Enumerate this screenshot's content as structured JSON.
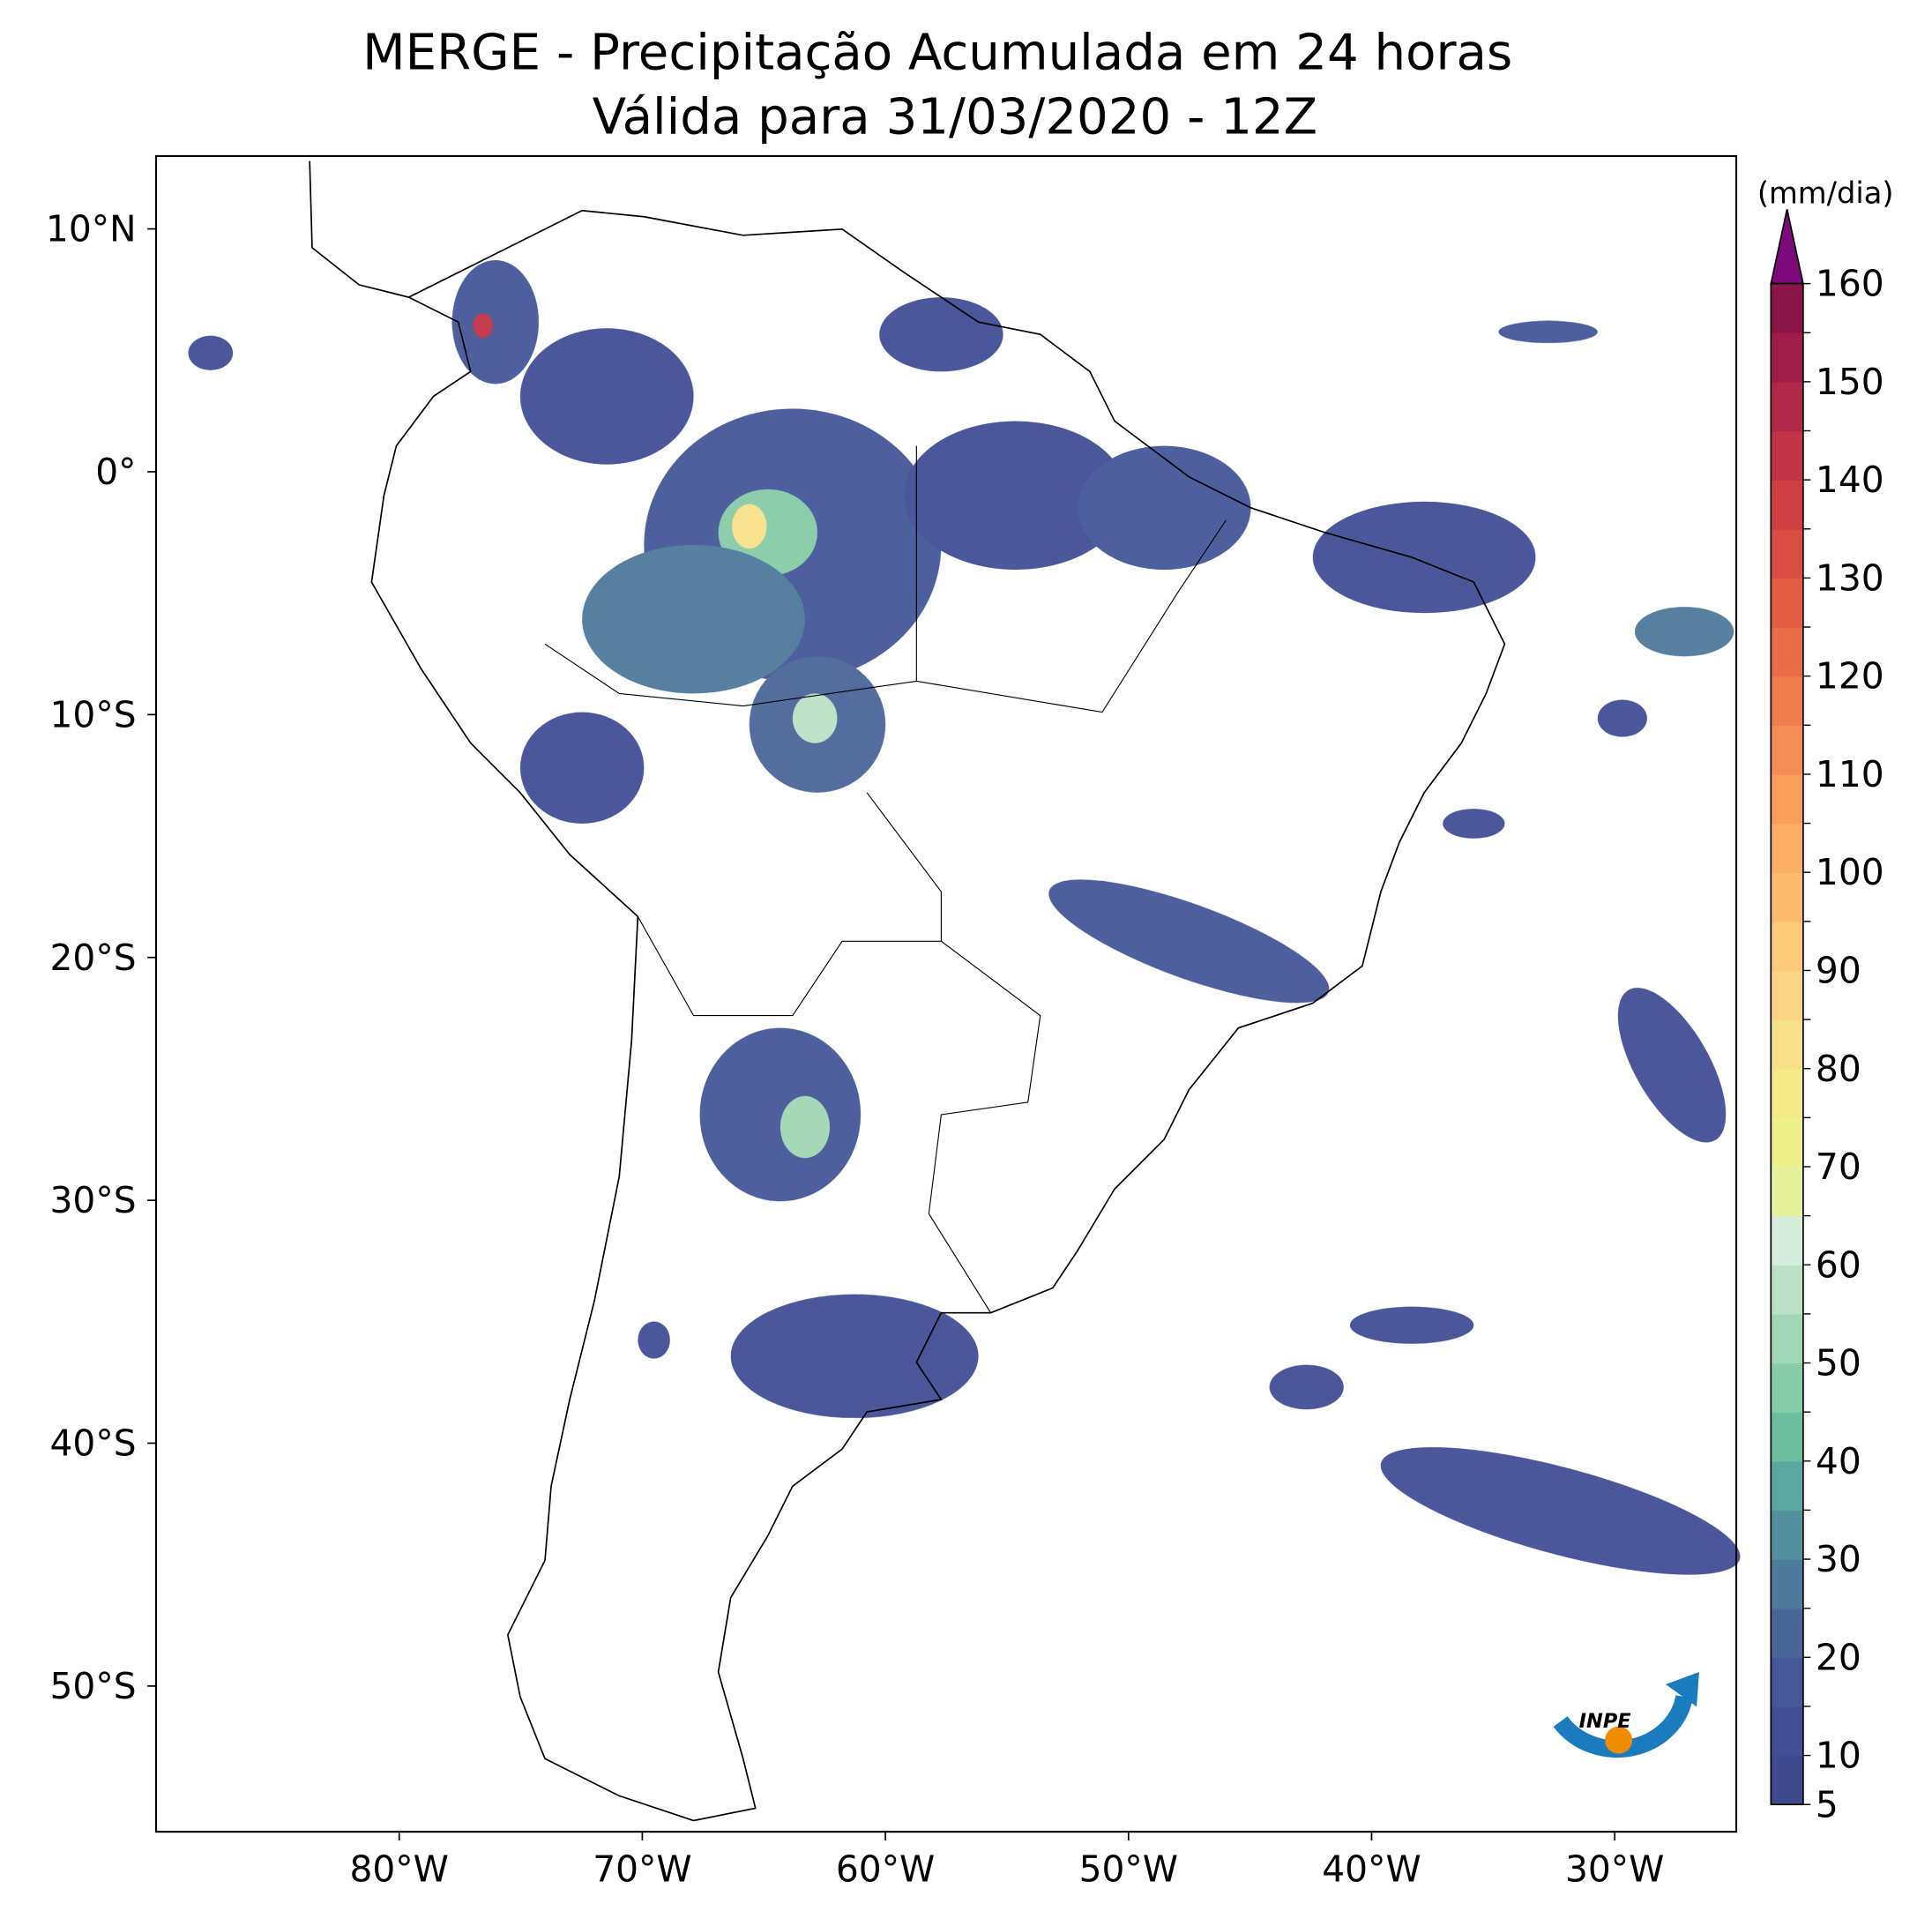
{
  "title": [
    "MERGE - Precipitação Acumulada em 24 horas",
    "Válida para 31/03/2020 - 12Z"
  ],
  "map": {
    "xlim": [
      -90,
      -25
    ],
    "ylim": [
      -56,
      13
    ],
    "xticks": [
      {
        "value": -80,
        "label": "80°W"
      },
      {
        "value": -70,
        "label": "70°W"
      },
      {
        "value": -60,
        "label": "60°W"
      },
      {
        "value": -50,
        "label": "50°W"
      },
      {
        "value": -40,
        "label": "40°W"
      },
      {
        "value": -30,
        "label": "30°W"
      }
    ],
    "yticks": [
      {
        "value": 10,
        "label": "10°N"
      },
      {
        "value": 0,
        "label": "0°"
      },
      {
        "value": -10,
        "label": "10°S"
      },
      {
        "value": -20,
        "label": "20°S"
      },
      {
        "value": -30,
        "label": "30°S"
      },
      {
        "value": -40,
        "label": "40°S"
      },
      {
        "value": -50,
        "label": "50°S"
      }
    ]
  },
  "colorbar": {
    "label": "(mm/dia)",
    "ticks": [
      5,
      10,
      15,
      20,
      25,
      30,
      35,
      40,
      45,
      50,
      55,
      60,
      65,
      70,
      75,
      80,
      85,
      90,
      95,
      100,
      105,
      110,
      115,
      120,
      125,
      130,
      135,
      140,
      145,
      150,
      155,
      160
    ],
    "colors": [
      "#3e4a8c",
      "#424f95",
      "#455798",
      "#4a6699",
      "#4e7a9b",
      "#52909e",
      "#5aa79f",
      "#6dbd9f",
      "#86cca8",
      "#a0d6b4",
      "#bbe0c4",
      "#d5ebdb",
      "#e6f29b",
      "#eef08a",
      "#f4ea88",
      "#f8e08a",
      "#fbd585",
      "#fdc97a",
      "#fdbb70",
      "#fcad66",
      "#f99e5d",
      "#f58e55",
      "#f07d4e",
      "#ea6c48",
      "#e35c43",
      "#da4d42",
      "#cf3f44",
      "#c13346",
      "#b12748",
      "#a01d4a",
      "#8c1549"
    ],
    "extend_color": "#7d0a7d"
  },
  "logo": "INPE"
}
